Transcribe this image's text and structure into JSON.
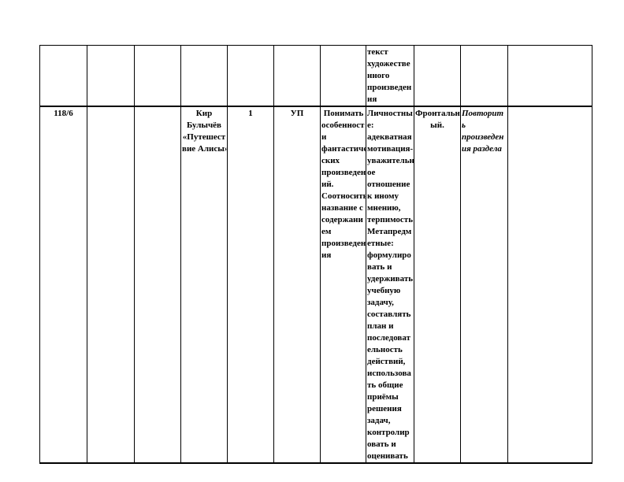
{
  "table": {
    "row1": {
      "col8": "текст\nхудожестве\nнного\nпроизведен\nия"
    },
    "row2": {
      "number": "118/6",
      "col2": "",
      "col3": "",
      "topic": "Кир\nБулычёв\n«Путешест\nвие Алисы»",
      "hours": "1",
      "lesson_type": "УП",
      "subject_results": " Понимать\nособенност\nи\nфантастиче\nских\nпроизведен\nий.\nСоотносить\nназвание с\nсодержани\nем\nпроизведен\nия",
      "uud": "Личностны\nе:\nадекватная\nмотивация-\nуважительн\nое\nотношение\nк иному\nмнению,\nтерпимость\nМетапредм\nетные:\nформулиро\nвать и\nудерживать\nучебную\nзадачу,\nсоставлять\nплан и\nпоследоват\nельность\nдействий,\nиспользова\nть общие\nприёмы\nрешения\nзадач,\nконтролир\nовать и\nоценивать",
      "form": "Фронтальн\nый.",
      "homework": "Повторит\nь\nпроизведен\nия раздела"
    }
  }
}
